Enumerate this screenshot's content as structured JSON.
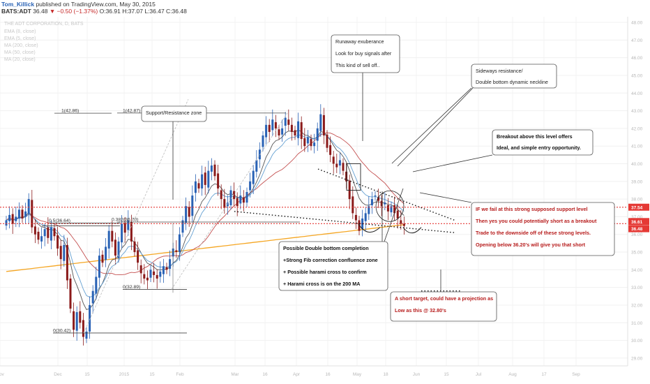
{
  "header": {
    "author": "Tom_Killick",
    "published": "published on TradingView.com, May 30, 2015",
    "symbol": "BATS:ADT",
    "price": "36.48",
    "change": "▼ −0.50 (−1.37%)",
    "ohlc": "O:36.91 H:37.07 L:36.47 C:36.48"
  },
  "legend": {
    "title": "THE ADT CORPORATION, D, BATS",
    "items": [
      "EMA (8, close)",
      "EMA (5, close)",
      "MA (200, close)",
      "MA (50, close)",
      "MA (20, close)"
    ]
  },
  "price_tags": [
    {
      "value": "37.54",
      "price": 37.54,
      "color": "#e53935"
    },
    {
      "value": "36.61",
      "price": 36.61,
      "color": "#e53935"
    },
    {
      "value": "36.48",
      "price": 36.48,
      "color": "#e53935"
    }
  ],
  "colors": {
    "up": "#2962b5",
    "down": "#8b1a1a",
    "ma200": "#f5a623",
    "ma50": "#c45050",
    "ema8": "#555555",
    "ema5": "#64a0d2",
    "hline": "#e53935",
    "axis_text": "#b8b8b8"
  },
  "chart_data": {
    "type": "candlestick",
    "ylim": [
      28.6,
      48.2
    ],
    "y_ticks": [
      "28.00",
      "29.00",
      "30.00",
      "31.00",
      "32.00",
      "33.00",
      "34.00",
      "35.00",
      "36.00",
      "37.00",
      "38.00",
      "39.00",
      "40.00",
      "41.00",
      "42.00",
      "43.00",
      "44.00",
      "45.00",
      "46.00",
      "47.00",
      "48.00"
    ],
    "x_ticks": [
      "Nov",
      "Dec",
      "15",
      "2015",
      "15",
      "Feb",
      "Mar",
      "16",
      "Apr",
      "16",
      "May",
      "18",
      "Jun",
      "15",
      "Jul",
      "Aug",
      "17",
      "Sep"
    ],
    "closes": [
      36.8,
      37.1,
      36.6,
      37.0,
      37.4,
      36.9,
      37.3,
      38.0,
      36.4,
      36.0,
      35.7,
      35.9,
      36.3,
      35.8,
      36.4,
      35.9,
      35.2,
      34.6,
      35.4,
      33.4,
      31.8,
      30.6,
      31.6,
      31.0,
      30.2,
      30.5,
      32.0,
      32.8,
      33.6,
      34.8,
      34.4,
      35.3,
      36.2,
      35.6,
      34.8,
      35.6,
      36.6,
      36.1,
      36.8,
      35.6,
      35.0,
      34.4,
      33.8,
      33.5,
      33.4,
      34.0,
      33.7,
      33.5,
      33.9,
      34.2,
      34.0,
      34.6,
      35.2,
      35.0,
      36.0,
      36.8,
      37.6,
      37.0,
      38.2,
      39.0,
      38.6,
      39.4,
      38.8,
      39.6,
      39.9,
      39.3,
      38.6,
      38.0,
      37.5,
      37.8,
      38.5,
      38.0,
      37.6,
      38.2,
      37.8,
      38.4,
      39.0,
      39.6,
      40.2,
      40.8,
      41.6,
      42.2,
      41.8,
      42.5,
      42.0,
      41.6,
      42.0,
      42.6,
      42.2,
      41.8,
      41.6,
      42.4,
      41.4,
      41.0,
      41.5,
      41.0,
      41.2,
      42.0,
      42.8,
      41.6,
      40.9,
      40.5,
      40.0,
      39.8,
      40.2,
      39.6,
      39.0,
      38.0,
      37.2,
      36.8,
      36.2,
      36.9,
      37.2,
      37.6,
      38.0,
      38.2,
      37.9,
      37.6,
      37.8,
      37.3,
      37.6,
      37.2,
      36.9,
      36.6,
      36.48
    ],
    "hlines": [
      37.54,
      36.61
    ],
    "fib_levels": [
      {
        "label": "1(42.86)",
        "price": 42.86
      },
      {
        "label": "1(42.87)",
        "price": 42.87
      },
      {
        "label": "0.5(36.64)",
        "price": 36.64
      },
      {
        "label": "0.382(36.70)",
        "price": 36.7
      },
      {
        "label": "0(32.89)",
        "price": 32.89
      },
      {
        "label": "0(30.42)",
        "price": 30.42
      }
    ],
    "annotations": [
      {
        "id": "support-resistance",
        "lines": [
          "Support/Resistance zone"
        ],
        "bold": false,
        "color": "#222"
      },
      {
        "id": "runaway",
        "lines": [
          "Runaway exuberance",
          "Look for buy signals after",
          "This kind of sell off.."
        ],
        "bold": false,
        "color": "#222"
      },
      {
        "id": "sideways",
        "lines": [
          "Sideways resistance/",
          "Double bottom dynamic neckline"
        ],
        "bold": false,
        "color": "#222"
      },
      {
        "id": "breakout",
        "lines": [
          "Breakout above this level offers",
          "Ideal, and simple entry opportunity."
        ],
        "bold": true,
        "color": "#111"
      },
      {
        "id": "fail-support",
        "lines": [
          "IF we fail at this strong supposed support level",
          "Then yes you could potentially short as a breakout",
          "Trade to the downside off of these strong levels.",
          "Opening below 36.20's will give you that short"
        ],
        "bold": true,
        "color": "#b71c1c"
      },
      {
        "id": "double-bottom",
        "lines": [
          "Possible Double bottom completion",
          "+Strong Fib correction confluence zone",
          "+ Possible harami cross to confirm",
          "+ Harami cross is on the 200 MA"
        ],
        "bold": true,
        "color": "#111"
      },
      {
        "id": "short-target",
        "lines": [
          "A short target, could have a projection as",
          "Low as this @ 32.80's"
        ],
        "bold": true,
        "color": "#b71c1c"
      }
    ]
  }
}
